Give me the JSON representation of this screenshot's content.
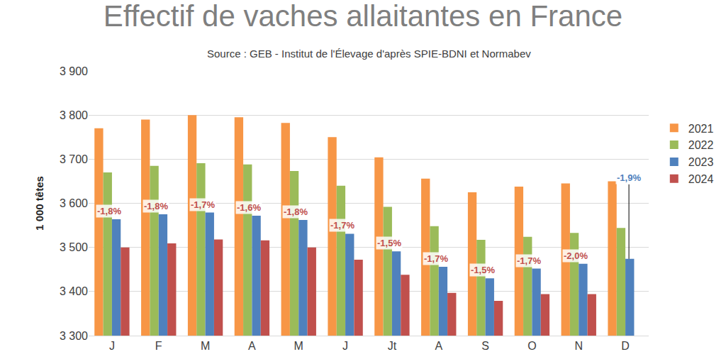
{
  "chart_data": {
    "type": "bar",
    "title": "Effectif de vaches allaitantes en France",
    "subtitle": "Source : GEB - Institut de l'Élevage d'après SPIE-BDNI et Normabev",
    "y_label": "1 000 têtes",
    "categories": [
      "J",
      "F",
      "M",
      "A",
      "M",
      "J",
      "Jt",
      "A",
      "S",
      "O",
      "N",
      "D"
    ],
    "series": [
      {
        "name": "2021",
        "color": "#F79646",
        "values": [
          3770,
          3790,
          3800,
          3795,
          3782,
          3750,
          3704,
          3656,
          3625,
          3638,
          3645,
          3650
        ]
      },
      {
        "name": "2022",
        "color": "#9BBB59",
        "values": [
          3670,
          3685,
          3691,
          3688,
          3673,
          3640,
          3592,
          3548,
          3517,
          3524,
          3533,
          3544
        ]
      },
      {
        "name": "2023",
        "color": "#4F81BD",
        "values": [
          3564,
          3575,
          3579,
          3572,
          3562,
          3531,
          3491,
          3456,
          3430,
          3452,
          3463,
          3474
        ]
      },
      {
        "name": "2024",
        "color": "#C0504D",
        "values": [
          3500,
          3509,
          3518,
          3516,
          3500,
          3472,
          3438,
          3397,
          3379,
          3394,
          3394,
          null
        ]
      }
    ],
    "annotations": [
      {
        "text": "-1,8%",
        "color": "#C0504D"
      },
      {
        "text": "-1,8%",
        "color": "#C0504D"
      },
      {
        "text": "-1,7%",
        "color": "#C0504D"
      },
      {
        "text": "-1,6%",
        "color": "#C0504D"
      },
      {
        "text": "-1,8%",
        "color": "#C0504D"
      },
      {
        "text": "-1,7%",
        "color": "#C0504D"
      },
      {
        "text": "-1,5%",
        "color": "#C0504D"
      },
      {
        "text": "-1,7%",
        "color": "#C0504D"
      },
      {
        "text": "-1,5%",
        "color": "#C0504D"
      },
      {
        "text": "-1,7%",
        "color": "#C0504D"
      },
      {
        "text": "-2,0%",
        "color": "#C0504D"
      },
      {
        "text": "-1,9%",
        "color": "#4F81BD"
      }
    ],
    "ylim": [
      3300,
      3900
    ],
    "yticks": [
      {
        "value": 3300,
        "label": "3 300"
      },
      {
        "value": 3400,
        "label": "3 400"
      },
      {
        "value": 3500,
        "label": "3 500"
      },
      {
        "value": 3600,
        "label": "3 600"
      },
      {
        "value": 3700,
        "label": "3 700"
      },
      {
        "value": 3800,
        "label": "3 800"
      },
      {
        "value": 3900,
        "label": "3 900"
      }
    ],
    "grid": true,
    "legend": "right"
  }
}
